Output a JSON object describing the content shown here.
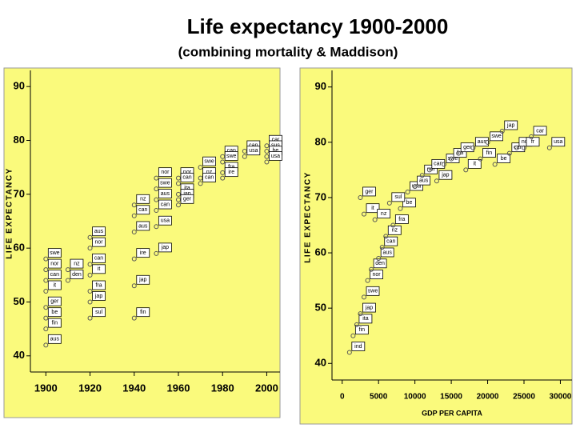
{
  "title": "Life expectancy 1900-2000",
  "subtitle": "(combining mortality & Maddison)",
  "chart_data": [
    {
      "type": "scatter",
      "ylabel": "LIFE EXPECTANCY",
      "color": "#555555",
      "background": "#fafa7c",
      "xlim": [
        1893,
        2006
      ],
      "ylim": [
        37,
        93
      ],
      "xticks": [
        1900,
        1920,
        1940,
        1960,
        1980,
        2000
      ],
      "yticks": [
        40,
        50,
        60,
        70,
        80,
        90
      ],
      "x": [
        1900,
        1900,
        1900,
        1900,
        1900,
        1900,
        1900,
        1900,
        1910,
        1910,
        1920,
        1920,
        1920,
        1920,
        1920,
        1920,
        1920,
        1940,
        1940,
        1940,
        1940,
        1940,
        1940,
        1950,
        1950,
        1950,
        1950,
        1950,
        1950,
        1960,
        1960,
        1960,
        1960,
        1960,
        1970,
        1970,
        1970,
        1980,
        1980,
        1980,
        1980,
        1990,
        1990,
        2000,
        2000,
        2000,
        2000
      ],
      "values": [
        58,
        56,
        54,
        52,
        49,
        47,
        45,
        42,
        56,
        54,
        62,
        60,
        57,
        55,
        52,
        50,
        47,
        68,
        66,
        63,
        58,
        53,
        47,
        73,
        71,
        69,
        67,
        64,
        59,
        73,
        72,
        70,
        69,
        68,
        75,
        73,
        72,
        77,
        76,
        74,
        73,
        78,
        77,
        79,
        78,
        77,
        76
      ],
      "labels": [
        "swe",
        "nor",
        "can",
        "it",
        "ger",
        "be",
        "fin",
        "aus",
        "nz",
        "den",
        "aus",
        "nor",
        "can",
        "it",
        "fra",
        "jap",
        "sul",
        "nz",
        "can",
        "aus",
        "ire",
        "jap",
        "fin",
        "nor",
        "swe",
        "aus",
        "can",
        "usa",
        "jap",
        "nor",
        "can",
        "ita",
        "jap",
        "ger",
        "swe",
        "nz",
        "can",
        "can",
        "swe",
        "fra",
        "ire",
        "can",
        "usa",
        "car",
        "sus",
        "be",
        "usa"
      ]
    },
    {
      "type": "scatter",
      "ylabel": "LIFE EXPECTANCY",
      "xlabel": "GDP PER CAPITA",
      "color": "#555555",
      "background": "#fafa7c",
      "xlim": [
        -1400,
        31600
      ],
      "ylim": [
        37,
        93
      ],
      "xticks": [
        0,
        5000,
        10000,
        15000,
        20000,
        25000,
        30000
      ],
      "yticks": [
        40,
        50,
        60,
        70,
        80,
        90
      ],
      "x": [
        1000,
        1500,
        2000,
        2500,
        3000,
        3500,
        4000,
        5000,
        5500,
        6000,
        7000,
        3000,
        2500,
        8000,
        9000,
        10000,
        11000,
        12000,
        13000,
        14000,
        15000,
        16000,
        17000,
        18000,
        19000,
        20000,
        21000,
        22000,
        23000,
        24000,
        25000,
        26000,
        28500,
        6500,
        4500
      ],
      "values": [
        42,
        45,
        47,
        49,
        52,
        55,
        57,
        59,
        61,
        63,
        65,
        67,
        70,
        68,
        71,
        72,
        74,
        75,
        73,
        76,
        77,
        78,
        75,
        79,
        77,
        80,
        76,
        82,
        78,
        79,
        79,
        81,
        79,
        69,
        66
      ],
      "labels": [
        "ind",
        "fin",
        "ita",
        "jap",
        "swe",
        "nor",
        "den",
        "aus",
        "can",
        "nz",
        "fra",
        "it",
        "ger",
        "be",
        "usa",
        "aus",
        "nor",
        "can",
        "jap",
        "swe",
        "fra",
        "ger",
        "it",
        "aus",
        "fin",
        "swe",
        "be",
        "jap",
        "can",
        "nor",
        "fr",
        "car",
        "usa",
        "sul",
        "nz"
      ]
    }
  ]
}
